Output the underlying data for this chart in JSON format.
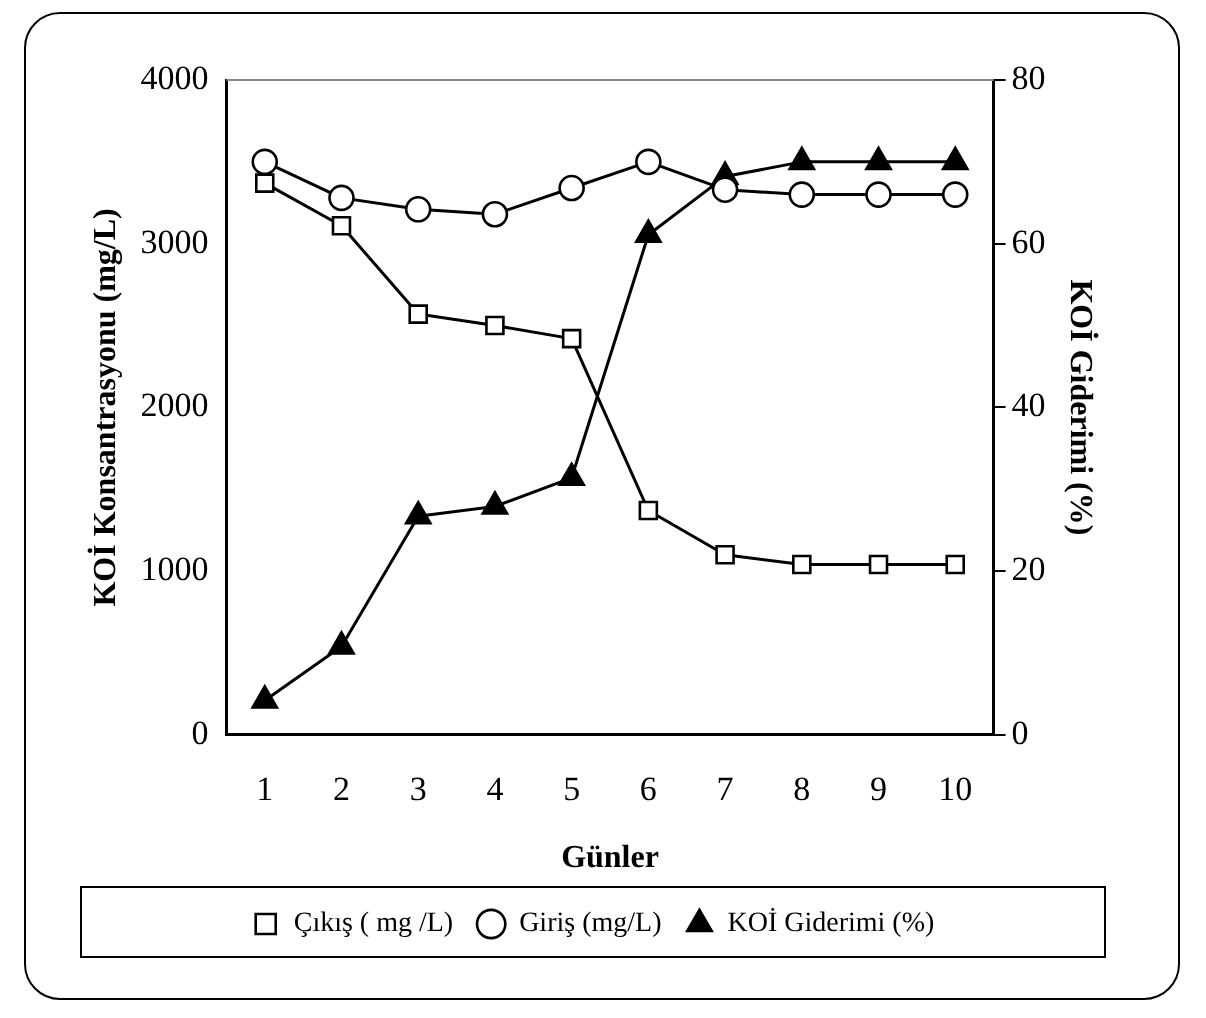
{
  "chart_data": {
    "type": "line",
    "xlabel": "Günler",
    "ylabel": "KOİ Konsantrasyonu (mg/L)",
    "y2label": "KOİ Giderimi (%)",
    "categories": [
      "1",
      "2",
      "3",
      "4",
      "5",
      "6",
      "7",
      "8",
      "9",
      "10"
    ],
    "ylim": [
      0,
      4000
    ],
    "yticks": [
      0,
      1000,
      2000,
      3000,
      4000
    ],
    "y2lim": [
      0,
      80
    ],
    "y2ticks": [
      0,
      20,
      40,
      60,
      80
    ],
    "grid": false,
    "legend": "bottom",
    "line_style": "solid",
    "series": [
      {
        "name": "Çıkış ( mg /L)",
        "color": "#000000",
        "marker": "square",
        "values": [
          3370,
          3110,
          2570,
          2500,
          2420,
          1370,
          1100,
          1040,
          1040,
          1040
        ]
      },
      {
        "name": "Giriş (mg/L)",
        "color": "#000000",
        "marker": "circle",
        "values": [
          3500,
          3280,
          3210,
          3180,
          3340,
          3500,
          3330,
          3300,
          3300,
          3300
        ]
      },
      {
        "name": "KOİ Giderimi (%)",
        "color": "#000000",
        "marker": "triangle",
        "axis": "y2",
        "values": [
          4.2,
          10.8,
          26.7,
          27.9,
          31.4,
          61.1,
          68.2,
          70,
          70,
          70
        ]
      }
    ]
  }
}
